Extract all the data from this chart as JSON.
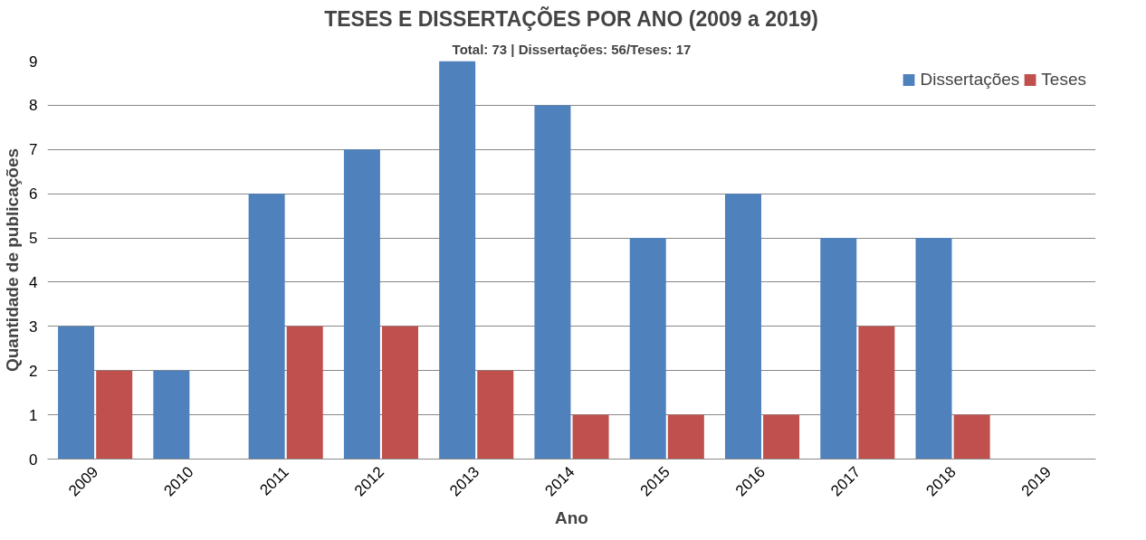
{
  "chart_data": {
    "type": "bar",
    "title": "TESES E DISSERTAÇÕES POR ANO (2009 a 2019)",
    "subtitle": "Total: 73 | Dissertações: 56/Teses: 17",
    "xlabel": "Ano",
    "ylabel": "Quantidade de publicações",
    "categories": [
      "2009",
      "2010",
      "2011",
      "2012",
      "2013",
      "2014",
      "2015",
      "2016",
      "2017",
      "2018",
      "2019"
    ],
    "series": [
      {
        "name": "Dissertações",
        "color": "#4f81bd",
        "values": [
          3,
          2,
          6,
          7,
          9,
          8,
          5,
          6,
          5,
          5,
          0
        ]
      },
      {
        "name": "Teses",
        "color": "#c0504d",
        "values": [
          2,
          0,
          3,
          3,
          2,
          1,
          1,
          1,
          3,
          1,
          0
        ]
      }
    ],
    "ylim": [
      0,
      9
    ],
    "yticks": [
      0,
      1,
      2,
      3,
      4,
      5,
      6,
      7,
      8,
      9
    ],
    "grid": "y",
    "legend": "top right"
  }
}
